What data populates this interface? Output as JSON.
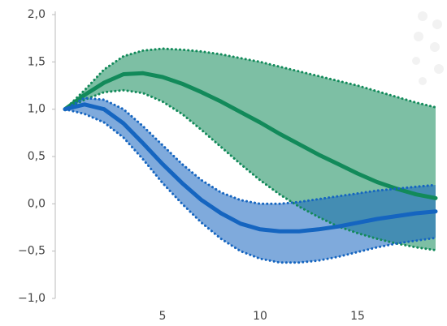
{
  "chart_data": {
    "type": "line",
    "x": [
      0,
      1,
      2,
      3,
      4,
      5,
      6,
      7,
      8,
      9,
      10,
      11,
      12,
      13,
      14,
      15,
      16,
      17,
      18,
      19
    ],
    "series": [
      {
        "color": "#128a5a",
        "values": [
          1.0,
          1.15,
          1.28,
          1.37,
          1.38,
          1.34,
          1.27,
          1.18,
          1.08,
          0.97,
          0.86,
          0.74,
          0.63,
          0.52,
          0.42,
          0.32,
          0.23,
          0.16,
          0.1,
          0.06
        ],
        "upper": [
          1.0,
          1.2,
          1.42,
          1.56,
          1.62,
          1.64,
          1.63,
          1.61,
          1.58,
          1.54,
          1.5,
          1.45,
          1.4,
          1.35,
          1.3,
          1.25,
          1.19,
          1.13,
          1.07,
          1.02
        ],
        "lower": [
          1.0,
          1.1,
          1.18,
          1.2,
          1.17,
          1.08,
          0.95,
          0.78,
          0.6,
          0.42,
          0.25,
          0.1,
          -0.03,
          -0.14,
          -0.24,
          -0.31,
          -0.37,
          -0.42,
          -0.46,
          -0.49
        ]
      },
      {
        "color": "#1565c0",
        "values": [
          1.0,
          1.05,
          1.0,
          0.85,
          0.64,
          0.42,
          0.22,
          0.04,
          -0.1,
          -0.21,
          -0.27,
          -0.29,
          -0.29,
          -0.27,
          -0.24,
          -0.2,
          -0.16,
          -0.13,
          -0.1,
          -0.08
        ],
        "upper": [
          1.0,
          1.12,
          1.1,
          1.0,
          0.82,
          0.62,
          0.42,
          0.25,
          0.12,
          0.04,
          0.0,
          0.0,
          0.02,
          0.05,
          0.08,
          0.11,
          0.14,
          0.16,
          0.18,
          0.2
        ],
        "lower": [
          1.0,
          0.95,
          0.86,
          0.7,
          0.47,
          0.22,
          0.0,
          -0.2,
          -0.37,
          -0.5,
          -0.58,
          -0.62,
          -0.62,
          -0.6,
          -0.56,
          -0.51,
          -0.46,
          -0.42,
          -0.39,
          -0.36
        ]
      }
    ],
    "xlim": [
      -0.5,
      19.5
    ],
    "xticks": [
      5,
      10,
      15
    ],
    "ylim": [
      -1,
      2
    ],
    "yticks": [
      {
        "value": 2,
        "label": "2,0"
      },
      {
        "value": 1.5,
        "label": "1,5"
      },
      {
        "value": 1,
        "label": "1,0"
      },
      {
        "value": 0.5,
        "label": "0,5"
      },
      {
        "value": 0,
        "label": "0,0"
      },
      {
        "value": -0.5,
        "label": "−0,5"
      },
      {
        "value": -1,
        "label": "−1,0"
      }
    ]
  }
}
